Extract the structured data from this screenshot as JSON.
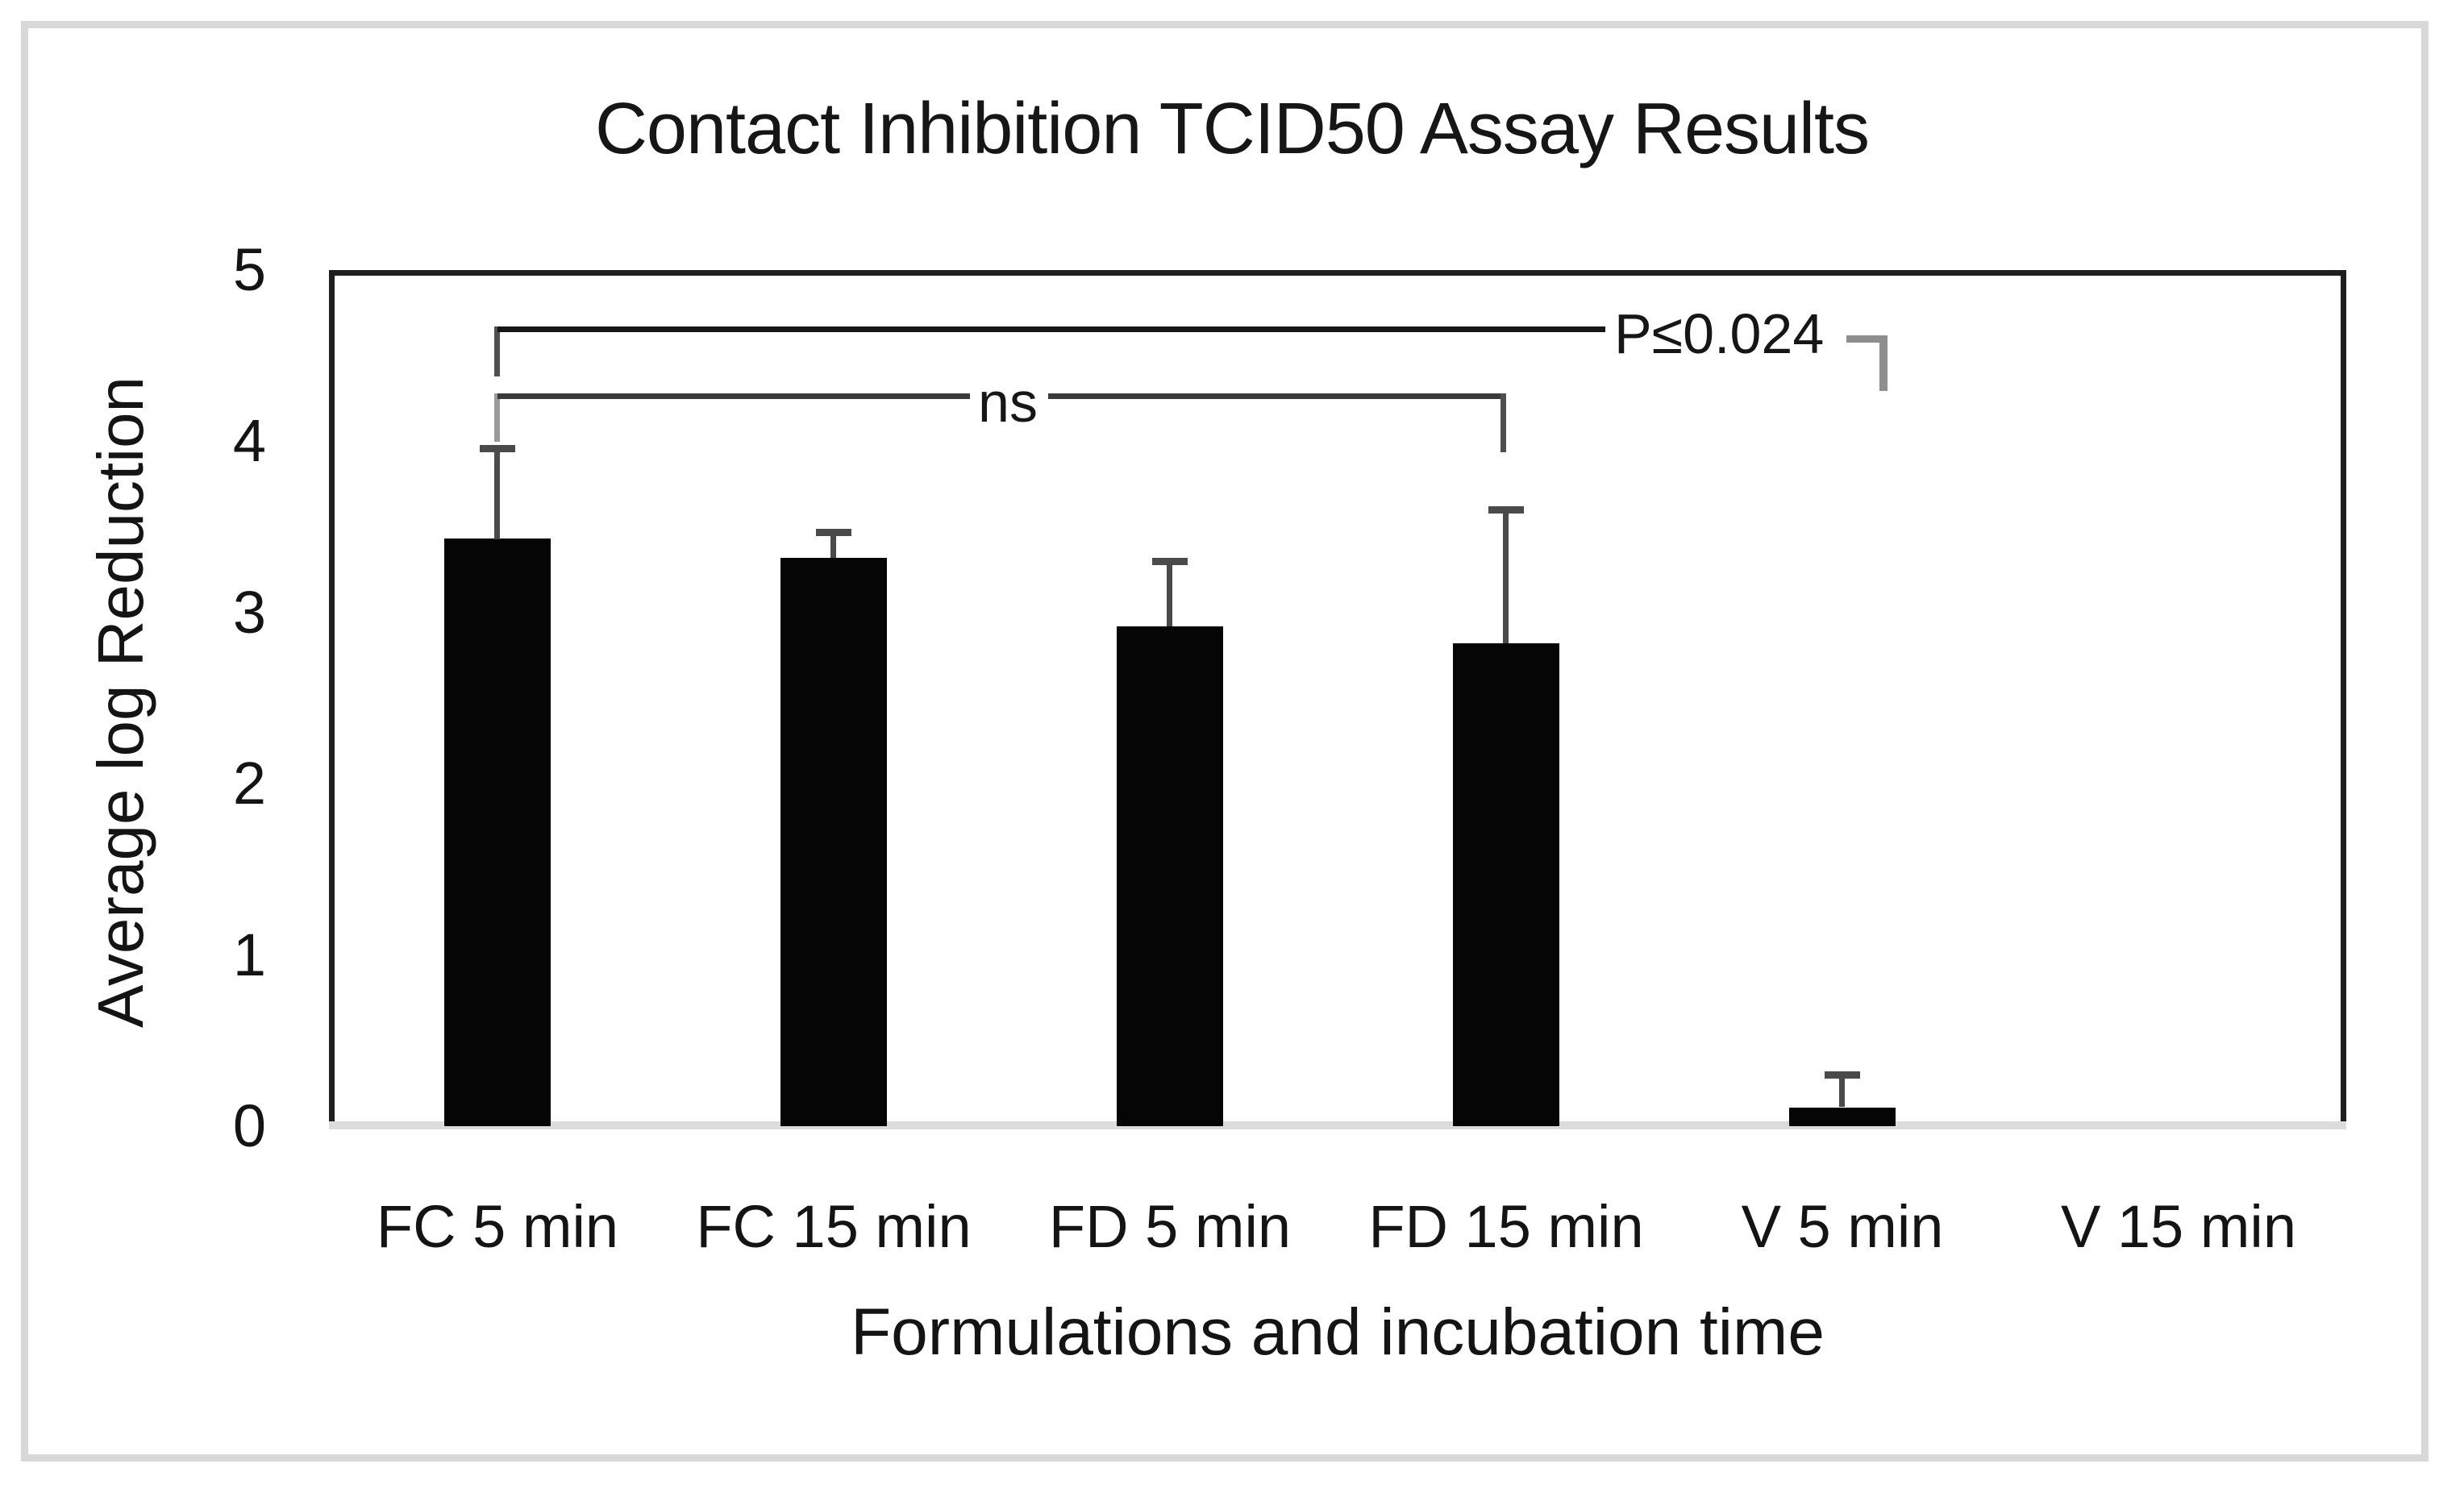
{
  "figure": {
    "title": "Contact Inhibition TCID50 Assay Results"
  },
  "chart_data": {
    "type": "bar",
    "title": "Contact Inhibition TCID50 Assay Results",
    "xlabel": "Formulations and incubation time",
    "ylabel": "Average log Reduction",
    "categories": [
      "FC 5 min",
      "FC 15 min",
      "FD 5 min",
      "FD 15 min",
      "V 5 min",
      "V 15 min"
    ],
    "values": [
      3.43,
      3.32,
      2.92,
      2.82,
      0.11,
      0
    ],
    "error_up": [
      0.53,
      0.15,
      0.38,
      0.78,
      0.19,
      0
    ],
    "ylim": [
      0,
      5
    ],
    "yticks": [
      "0",
      "1",
      "2",
      "3",
      "4",
      "5"
    ],
    "grid": false,
    "legend": "none",
    "bar_color": "#050505",
    "error_bar_color": "#4a4a4a",
    "annotations": [
      {
        "text": "P≤0.024",
        "from": "FC 5 min",
        "to": "V 5 min",
        "y": 4.67,
        "style": "bracket-with-corner"
      },
      {
        "text": "ns",
        "from": "FC 5 min",
        "to": "FD 15 min",
        "y": 4.28,
        "style": "bracket"
      }
    ]
  }
}
